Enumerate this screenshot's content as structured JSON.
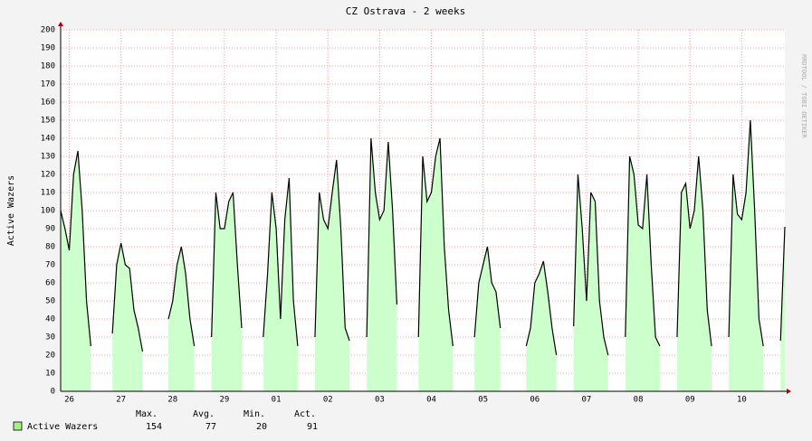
{
  "chart_data": {
    "type": "line",
    "title": "CZ Ostrava - 2 weeks",
    "y_label": "Active Wazers",
    "watermark": "RRDTOOL / TOBI OETIKER",
    "ylim": [
      0,
      200
    ],
    "yticks": [
      0,
      10,
      20,
      30,
      40,
      50,
      60,
      70,
      80,
      90,
      100,
      110,
      120,
      130,
      140,
      150,
      160,
      170,
      180,
      190,
      200
    ],
    "xlim": [
      0,
      168
    ],
    "xticks": [
      {
        "value": 2,
        "label": "26"
      },
      {
        "value": 14,
        "label": "27"
      },
      {
        "value": 26,
        "label": "28"
      },
      {
        "value": 38,
        "label": "29"
      },
      {
        "value": 50,
        "label": "01"
      },
      {
        "value": 62,
        "label": "02"
      },
      {
        "value": 74,
        "label": "03"
      },
      {
        "value": 86,
        "label": "04"
      },
      {
        "value": 98,
        "label": "05"
      },
      {
        "value": 110,
        "label": "06"
      },
      {
        "value": 122,
        "label": "07"
      },
      {
        "value": 134,
        "label": "08"
      },
      {
        "value": 146,
        "label": "09"
      },
      {
        "value": 158,
        "label": "10"
      }
    ],
    "grid": true,
    "series": [
      {
        "name": "Active Wazers",
        "color": "#000000",
        "fill": "#ccffcc",
        "legend_color": "#aaee88",
        "values": [
          100,
          90,
          78,
          120,
          133,
          100,
          50,
          25,
          null,
          null,
          null,
          null,
          32,
          70,
          82,
          70,
          68,
          45,
          35,
          22,
          null,
          null,
          null,
          null,
          null,
          40,
          50,
          70,
          80,
          65,
          40,
          25,
          null,
          null,
          null,
          30,
          110,
          90,
          90,
          105,
          110,
          70,
          35,
          null,
          null,
          null,
          null,
          30,
          65,
          110,
          90,
          40,
          95,
          118,
          50,
          25,
          null,
          null,
          null,
          30,
          110,
          95,
          90,
          110,
          128,
          90,
          35,
          28,
          null,
          null,
          null,
          30,
          140,
          110,
          95,
          100,
          138,
          100,
          48,
          null,
          null,
          null,
          null,
          30,
          130,
          105,
          110,
          130,
          140,
          80,
          45,
          25,
          null,
          null,
          null,
          null,
          30,
          60,
          70,
          80,
          60,
          55,
          35,
          null,
          null,
          null,
          null,
          null,
          25,
          35,
          60,
          65,
          72,
          55,
          35,
          20,
          null,
          null,
          null,
          36,
          120,
          90,
          50,
          110,
          105,
          50,
          30,
          20,
          null,
          null,
          null,
          30,
          130,
          120,
          92,
          90,
          120,
          70,
          30,
          25,
          null,
          null,
          null,
          30,
          110,
          115,
          90,
          100,
          130,
          100,
          45,
          25,
          null,
          null,
          null,
          30,
          120,
          98,
          95,
          110,
          150,
          100,
          40,
          25,
          null,
          null,
          null,
          28,
          91
        ]
      }
    ],
    "stats": {
      "headers": [
        "Max.",
        "Avg.",
        "Min.",
        "Act."
      ],
      "values": [
        154,
        77,
        20,
        91
      ]
    }
  }
}
